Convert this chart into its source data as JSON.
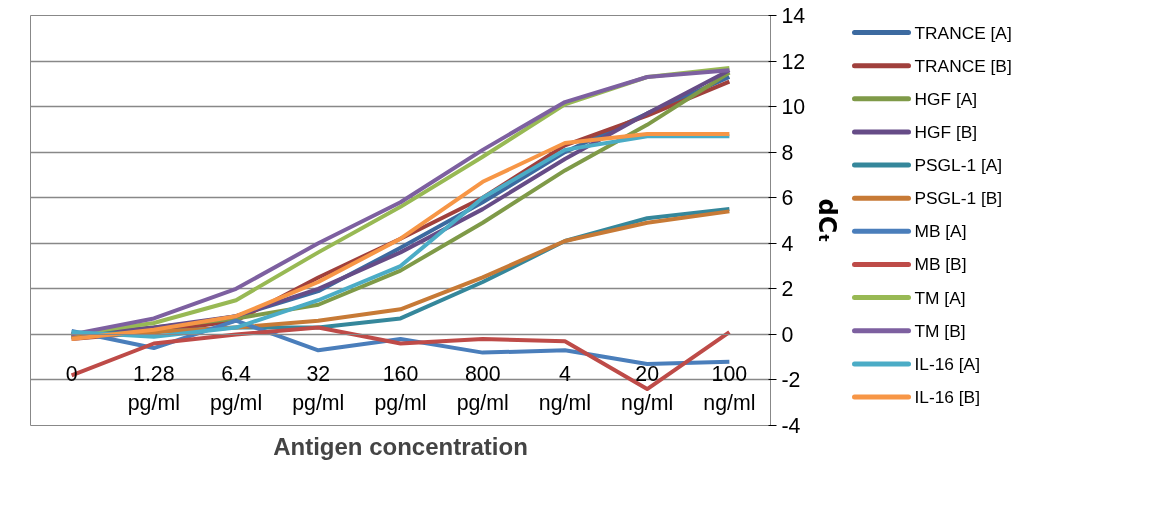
{
  "chart_data": {
    "type": "line",
    "xlabel": "Antigen concentration",
    "ylabel": "dCₜ",
    "categories": [
      "0",
      "1.28\npg/ml",
      "6.4\npg/ml",
      "32\npg/ml",
      "160\npg/ml",
      "800\npg/ml",
      "4\nng/ml",
      "20\nng/ml",
      "100\nng/ml"
    ],
    "ylim": [
      -4,
      14
    ],
    "yticks": [
      -4,
      -2,
      0,
      2,
      4,
      6,
      8,
      10,
      12,
      14
    ],
    "grid": "y",
    "legend": "right",
    "marker": "none",
    "line_style": "solid",
    "series": [
      {
        "name": "TRANCE [A]",
        "color": "#3c6aa0",
        "values": [
          -0.1,
          0.2,
          0.8,
          1.9,
          3.8,
          5.8,
          8.0,
          9.7,
          11.3
        ]
      },
      {
        "name": "TRANCE [B]",
        "color": "#a0403c",
        "values": [
          -0.2,
          0.1,
          0.6,
          2.5,
          4.2,
          6.0,
          8.3,
          9.6,
          11.1
        ]
      },
      {
        "name": "HGF [A]",
        "color": "#7f9a48",
        "values": [
          -0.1,
          0.3,
          0.7,
          1.3,
          2.8,
          4.9,
          7.2,
          9.2,
          11.5
        ]
      },
      {
        "name": "HGF [B]",
        "color": "#664c87",
        "values": [
          0.0,
          0.3,
          0.8,
          2.0,
          3.6,
          5.5,
          7.7,
          9.7,
          11.6
        ]
      },
      {
        "name": "PSGL-1 [A]",
        "color": "#35879b",
        "values": [
          0.0,
          0.1,
          0.3,
          0.3,
          0.7,
          2.3,
          4.1,
          5.1,
          5.5
        ]
      },
      {
        "name": "PSGL-1 [B]",
        "color": "#c77a36",
        "values": [
          -0.1,
          0.1,
          0.3,
          0.6,
          1.1,
          2.5,
          4.1,
          4.9,
          5.4
        ]
      },
      {
        "name": "MB [A]",
        "color": "#4a7ebb",
        "values": [
          0.15,
          -0.6,
          0.6,
          -0.7,
          -0.2,
          -0.8,
          -0.7,
          -1.3,
          -1.2
        ]
      },
      {
        "name": "MB [B]",
        "color": "#be4b48",
        "values": [
          -1.8,
          -0.4,
          0.0,
          0.3,
          -0.4,
          -0.2,
          -0.3,
          -2.4,
          0.1
        ]
      },
      {
        "name": "TM [A]",
        "color": "#98b954",
        "values": [
          0.0,
          0.5,
          1.5,
          3.6,
          5.6,
          7.8,
          10.1,
          11.3,
          11.7
        ]
      },
      {
        "name": "TM [B]",
        "color": "#7d60a0",
        "values": [
          0.0,
          0.7,
          2.0,
          4.0,
          5.8,
          8.1,
          10.2,
          11.3,
          11.6
        ]
      },
      {
        "name": "IL-16 [A]",
        "color": "#4bacc6",
        "values": [
          0.1,
          -0.1,
          0.3,
          1.5,
          3.0,
          6.0,
          8.1,
          8.7,
          8.7
        ]
      },
      {
        "name": "IL-16 [B]",
        "color": "#f79646",
        "values": [
          -0.2,
          0.2,
          0.8,
          2.3,
          4.2,
          6.7,
          8.4,
          8.8,
          8.8
        ]
      }
    ]
  }
}
